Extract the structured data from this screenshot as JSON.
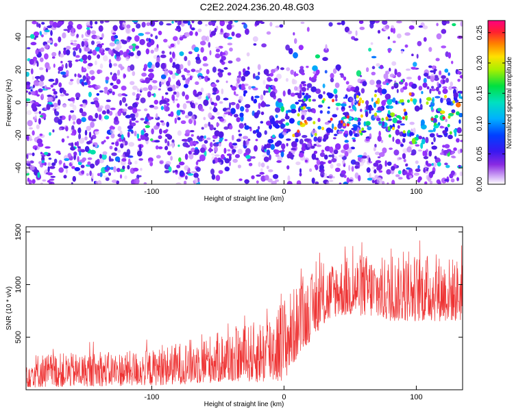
{
  "title": "C2E2.2024.236.20.48.G03",
  "chart_data": [
    {
      "type": "heatmap",
      "description_of_axes": "spectrogram",
      "xlabel": "Height of straight line (km)",
      "ylabel": "Frequency (Hz)",
      "xlim": [
        -195,
        135
      ],
      "ylim": [
        -50,
        50
      ],
      "x_ticks": [
        -100,
        0,
        100
      ],
      "y_ticks": [
        -40,
        -20,
        0,
        20,
        40
      ],
      "colorbar": {
        "label": "Normalized spectral amplitude",
        "range": [
          0.0,
          0.27
        ],
        "ticks": [
          "0.00",
          "0.05",
          "0.10",
          "0.15",
          "0.20",
          "0.25"
        ],
        "colors": [
          "#ffffff",
          "#e8d0f8",
          "#9b30ff",
          "#5a1de0",
          "#1a1aff",
          "#00a0ff",
          "#00e0d0",
          "#00e060",
          "#a0f000",
          "#ffe000",
          "#ff8000",
          "#ff2040",
          "#ff0080"
        ]
      },
      "signal_band": {
        "x_start": -40,
        "x_end": 135,
        "y_center": -8,
        "half_width": 20
      }
    },
    {
      "type": "line",
      "xlabel": "Height of straight line (km)",
      "ylabel": "SNR (10 * v/v)",
      "xlim": [
        -195,
        135
      ],
      "ylim": [
        0,
        1550
      ],
      "x_ticks": [
        -100,
        0,
        100
      ],
      "y_ticks": [
        500,
        1000,
        1500
      ],
      "series": [
        {
          "color": "#ee3333",
          "envelope": [
            {
              "x": -195,
              "low": 20,
              "high": 350
            },
            {
              "x": -150,
              "low": 30,
              "high": 350
            },
            {
              "x": -100,
              "low": 40,
              "high": 380
            },
            {
              "x": -60,
              "low": 60,
              "high": 520
            },
            {
              "x": -30,
              "low": 80,
              "high": 600
            },
            {
              "x": -15,
              "low": 60,
              "high": 700
            },
            {
              "x": 0,
              "low": 80,
              "high": 900
            },
            {
              "x": 10,
              "low": 300,
              "high": 1000
            },
            {
              "x": 25,
              "low": 550,
              "high": 1150
            },
            {
              "x": 40,
              "low": 700,
              "high": 1250
            },
            {
              "x": 60,
              "low": 700,
              "high": 1300
            },
            {
              "x": 80,
              "low": 650,
              "high": 1250
            },
            {
              "x": 105,
              "low": 650,
              "high": 1300
            },
            {
              "x": 135,
              "low": 650,
              "high": 1250
            }
          ]
        }
      ]
    }
  ]
}
